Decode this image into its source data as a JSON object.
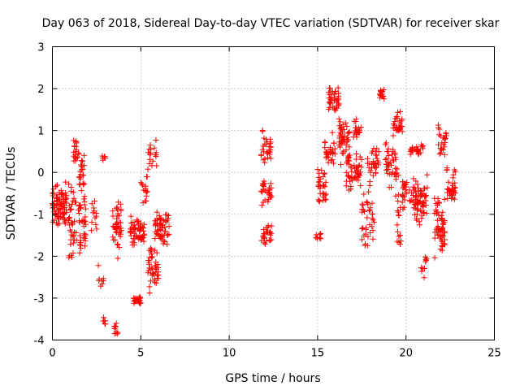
{
  "chart_data": {
    "type": "scatter",
    "title": "Day 063 of 2018, Sidereal Day-to-day VTEC variation (SDTVAR) for receiver skar",
    "xlabel": "GPS time / hours",
    "ylabel": "SDTVAR / TECUs",
    "xlim": [
      0,
      25
    ],
    "ylim": [
      -4,
      3
    ],
    "xticks": [
      0,
      5,
      10,
      15,
      20,
      25
    ],
    "yticks": [
      -4,
      -3,
      -2,
      -1,
      0,
      1,
      2,
      3
    ],
    "grid": true,
    "marker": "+",
    "color": "#ff0000",
    "series": [
      {
        "name": "SDTVAR",
        "clusters": [
          {
            "x": [
              0.0,
              0.8
            ],
            "y_center": -0.8,
            "y_spread": 0.6,
            "count": 90
          },
          {
            "x": [
              0.9,
              1.9
            ],
            "y_center": -1.2,
            "y_spread": 1.0,
            "count": 80
          },
          {
            "x": [
              1.2,
              1.5
            ],
            "y_center": 0.5,
            "y_spread": 0.3,
            "count": 20
          },
          {
            "x": [
              1.5,
              1.8
            ],
            "y_center": 0.0,
            "y_spread": 0.5,
            "count": 20
          },
          {
            "x": [
              2.2,
              2.5
            ],
            "y_center": -1.0,
            "y_spread": 0.6,
            "count": 12
          },
          {
            "x": [
              2.8,
              3.0
            ],
            "y_center": 0.35,
            "y_spread": 0.1,
            "count": 6
          },
          {
            "x": [
              2.8,
              3.0
            ],
            "y_center": -3.55,
            "y_spread": 0.1,
            "count": 6
          },
          {
            "x": [
              2.6,
              3.0
            ],
            "y_center": -2.5,
            "y_spread": 0.3,
            "count": 8
          },
          {
            "x": [
              3.4,
              3.9
            ],
            "y_center": -1.3,
            "y_spread": 0.8,
            "count": 45
          },
          {
            "x": [
              3.4,
              3.7
            ],
            "y_center": -3.7,
            "y_spread": 0.2,
            "count": 10
          },
          {
            "x": [
              4.4,
              5.2
            ],
            "y_center": -1.4,
            "y_spread": 0.4,
            "count": 55
          },
          {
            "x": [
              4.6,
              5.0
            ],
            "y_center": -3.05,
            "y_spread": 0.1,
            "count": 30
          },
          {
            "x": [
              5.0,
              5.4
            ],
            "y_center": -0.5,
            "y_spread": 0.5,
            "count": 15
          },
          {
            "x": [
              5.4,
              5.9
            ],
            "y_center": 0.5,
            "y_spread": 0.5,
            "count": 18
          },
          {
            "x": [
              5.4,
              6.0
            ],
            "y_center": -2.3,
            "y_spread": 0.6,
            "count": 45
          },
          {
            "x": [
              5.8,
              6.6
            ],
            "y_center": -1.3,
            "y_spread": 0.5,
            "count": 60
          },
          {
            "x": [
              11.8,
              12.4
            ],
            "y_center": 0.6,
            "y_spread": 0.5,
            "count": 30
          },
          {
            "x": [
              11.8,
              12.4
            ],
            "y_center": -0.5,
            "y_spread": 0.4,
            "count": 30
          },
          {
            "x": [
              11.8,
              12.4
            ],
            "y_center": -1.5,
            "y_spread": 0.3,
            "count": 25
          },
          {
            "x": [
              14.9,
              15.2
            ],
            "y_center": -1.5,
            "y_spread": 0.15,
            "count": 8
          },
          {
            "x": [
              15.0,
              15.5
            ],
            "y_center": -0.3,
            "y_spread": 0.5,
            "count": 30
          },
          {
            "x": [
              15.4,
              16.0
            ],
            "y_center": 0.5,
            "y_spread": 0.5,
            "count": 30
          },
          {
            "x": [
              15.6,
              16.2
            ],
            "y_center": 1.7,
            "y_spread": 0.4,
            "count": 40
          },
          {
            "x": [
              16.2,
              16.8
            ],
            "y_center": 0.8,
            "y_spread": 0.8,
            "count": 50
          },
          {
            "x": [
              16.6,
              17.5
            ],
            "y_center": 0.0,
            "y_spread": 0.5,
            "count": 50
          },
          {
            "x": [
              17.0,
              17.5
            ],
            "y_center": 1.1,
            "y_spread": 0.3,
            "count": 20
          },
          {
            "x": [
              17.5,
              18.2
            ],
            "y_center": -1.0,
            "y_spread": 1.0,
            "count": 40
          },
          {
            "x": [
              17.8,
              18.5
            ],
            "y_center": 0.3,
            "y_spread": 0.4,
            "count": 30
          },
          {
            "x": [
              18.5,
              18.8
            ],
            "y_center": 1.9,
            "y_spread": 0.15,
            "count": 15
          },
          {
            "x": [
              18.8,
              19.5
            ],
            "y_center": 0.2,
            "y_spread": 0.6,
            "count": 40
          },
          {
            "x": [
              19.2,
              19.8
            ],
            "y_center": 1.2,
            "y_spread": 0.4,
            "count": 30
          },
          {
            "x": [
              19.4,
              19.9
            ],
            "y_center": -1.0,
            "y_spread": 1.0,
            "count": 25
          },
          {
            "x": [
              19.8,
              20.2
            ],
            "y_center": -0.4,
            "y_spread": 0.4,
            "count": 15
          },
          {
            "x": [
              20.2,
              21.0
            ],
            "y_center": 0.55,
            "y_spread": 0.15,
            "count": 25
          },
          {
            "x": [
              20.2,
              21.2
            ],
            "y_center": -0.7,
            "y_spread": 0.7,
            "count": 70
          },
          {
            "x": [
              20.8,
              21.2
            ],
            "y_center": -2.3,
            "y_spread": 0.4,
            "count": 10
          },
          {
            "x": [
              21.6,
              22.2
            ],
            "y_center": -1.3,
            "y_spread": 0.8,
            "count": 60
          },
          {
            "x": [
              21.8,
              22.3
            ],
            "y_center": 0.7,
            "y_spread": 0.5,
            "count": 25
          },
          {
            "x": [
              22.3,
              22.8
            ],
            "y_center": -0.3,
            "y_spread": 0.5,
            "count": 35
          }
        ]
      }
    ]
  }
}
